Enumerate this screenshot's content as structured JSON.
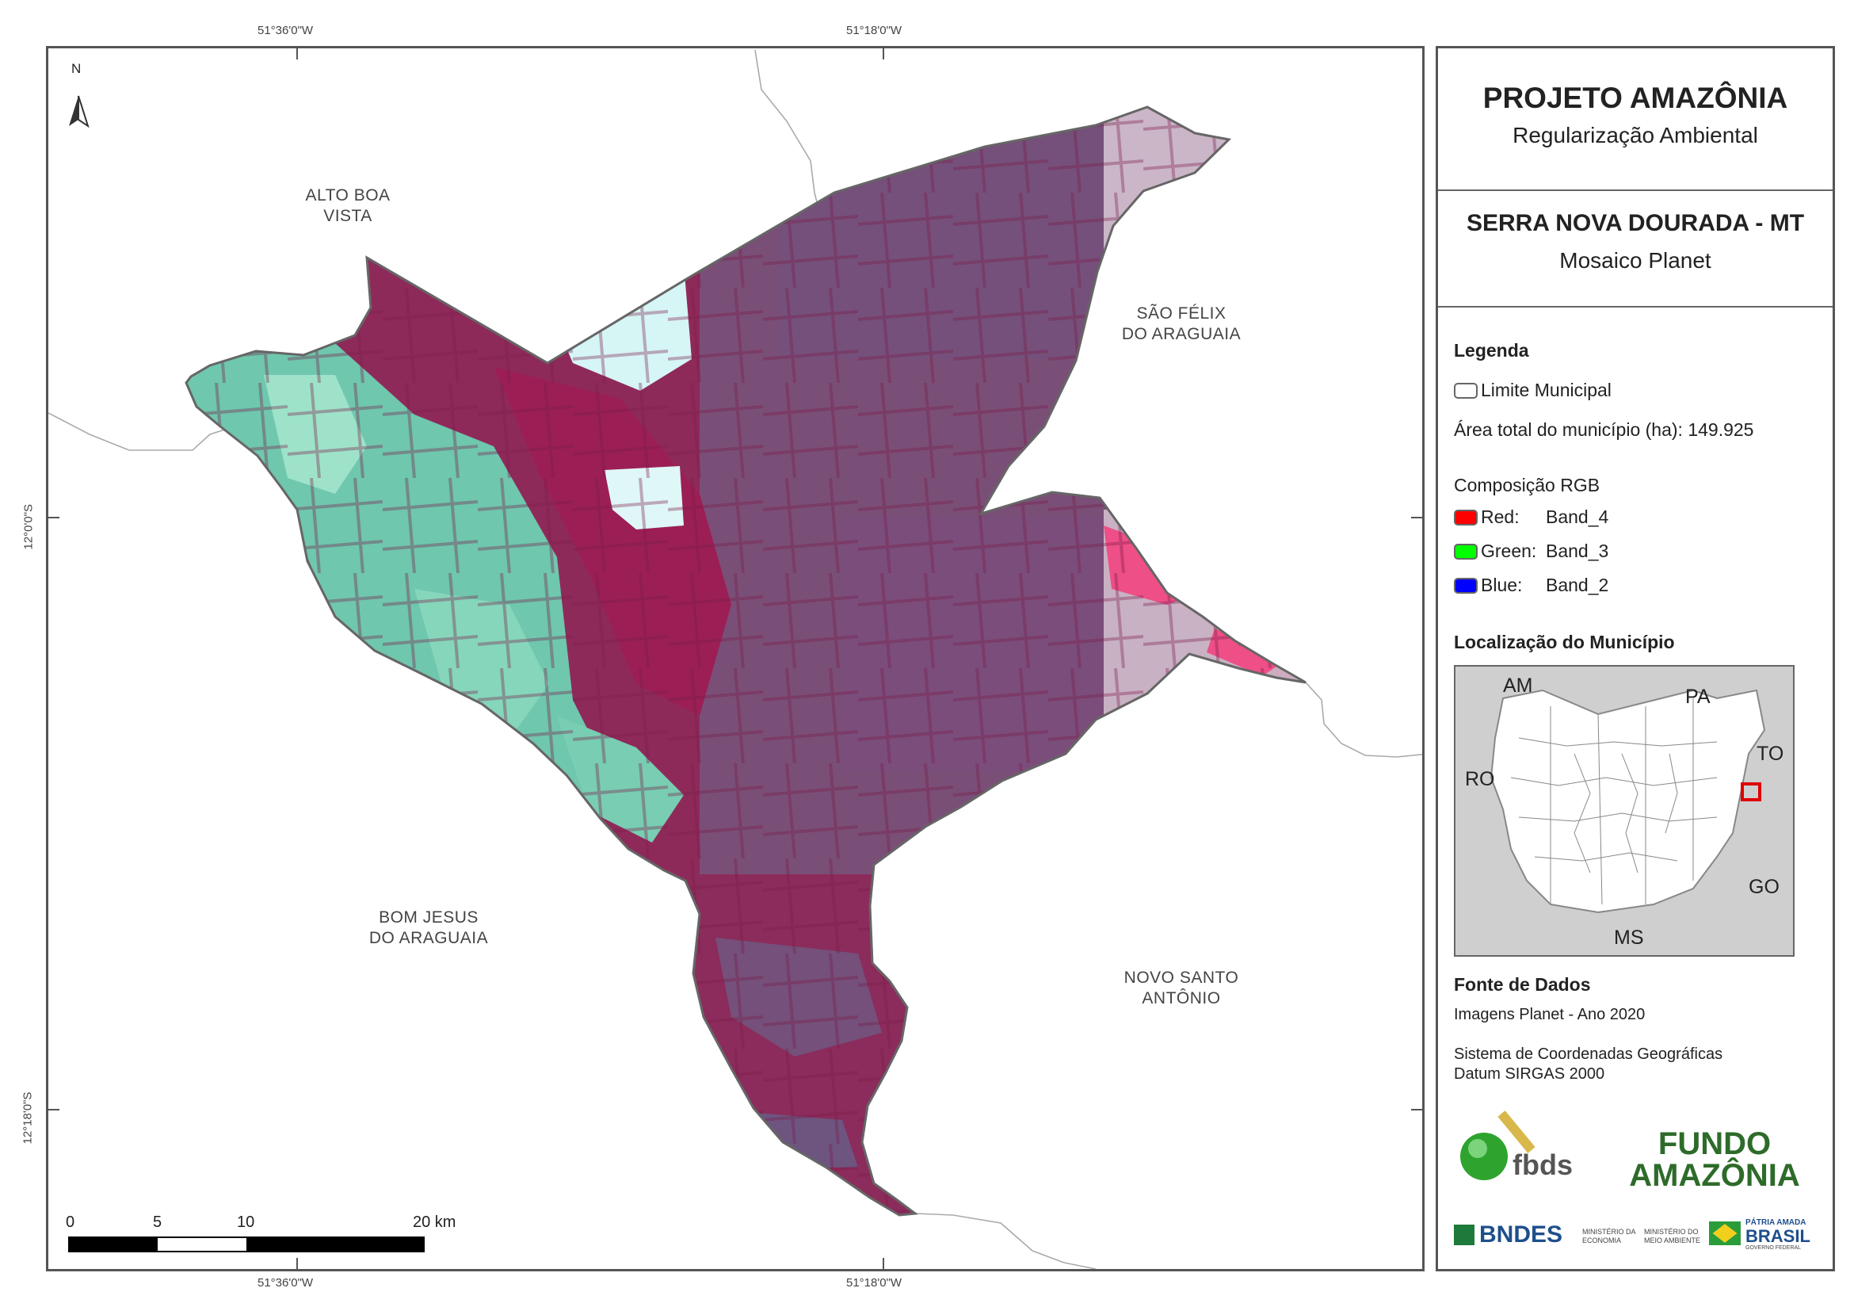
{
  "coords": {
    "top_left": "51°36'0\"W",
    "top_right": "51°18'0\"W",
    "bottom_left": "51°36'0\"W",
    "bottom_right": "51°18'0\"W",
    "left_top": "12°0'0\"S",
    "left_bottom": "12°18'0\"S"
  },
  "north_label": "N",
  "municipalities": {
    "alto_boa_vista_1": "ALTO BOA",
    "alto_boa_vista_2": "VISTA",
    "sao_felix_1": "SÃO FÉLIX",
    "sao_felix_2": "DO ARAGUAIA",
    "bom_jesus_1": "BOM JESUS",
    "bom_jesus_2": "DO ARAGUAIA",
    "novo_santo_1": "NOVO SANTO",
    "novo_santo_2": "ANTÔNIO"
  },
  "scale": {
    "labels": [
      "0",
      "5",
      "10",
      "20 km"
    ],
    "ticks_km": [
      0,
      5,
      10,
      20
    ]
  },
  "panel": {
    "project_title": "PROJETO AMAZÔNIA",
    "project_subtitle": "Regularização Ambiental",
    "place_title": "SERRA NOVA DOURADA - MT",
    "place_subtitle": "Mosaico Planet",
    "legend_heading": "Legenda",
    "legend_limit": "Limite Municipal",
    "area_total": "Área total do município (ha): 149.925",
    "rgb_heading": "Composição RGB",
    "rgb": [
      {
        "label": "Red:",
        "band": "Band_4",
        "color": "#ff0000"
      },
      {
        "label": "Green:",
        "band": "Band_3",
        "color": "#00ff00"
      },
      {
        "label": "Blue:",
        "band": "Band_2",
        "color": "#0000ff"
      }
    ],
    "location_heading": "Localização do Município",
    "states": {
      "am": "AM",
      "pa": "PA",
      "ro": "RO",
      "to": "TO",
      "go": "GO",
      "ms": "MS"
    },
    "sources_heading": "Fonte de Dados",
    "source_1": "Imagens Planet - Ano 2020",
    "source_2": "Sistema de Coordenadas Geográficas",
    "source_3": "Datum SIRGAS 2000"
  },
  "logos": {
    "fbds": "fbds",
    "fundo_1": "FUNDO",
    "fundo_2": "AMAZÔNIA",
    "bndes": "BNDES",
    "min_econ_1": "MINISTÉRIO DA",
    "min_econ_2": "ECONOMIA",
    "min_amb_1": "MINISTÉRIO DO",
    "min_amb_2": "MEIO AMBIENTE",
    "patria_1": "PÁTRIA AMADA",
    "patria_2": "BRASIL",
    "patria_3": "GOVERNO FEDERAL"
  },
  "colors": {
    "magenta": "#9a2a5c",
    "cyan_veg": "#7fd3bb",
    "light_cyan": "#d8f4f4",
    "pink": "#ee4f86",
    "boundary": "#666666",
    "highlight": "#e00000"
  }
}
